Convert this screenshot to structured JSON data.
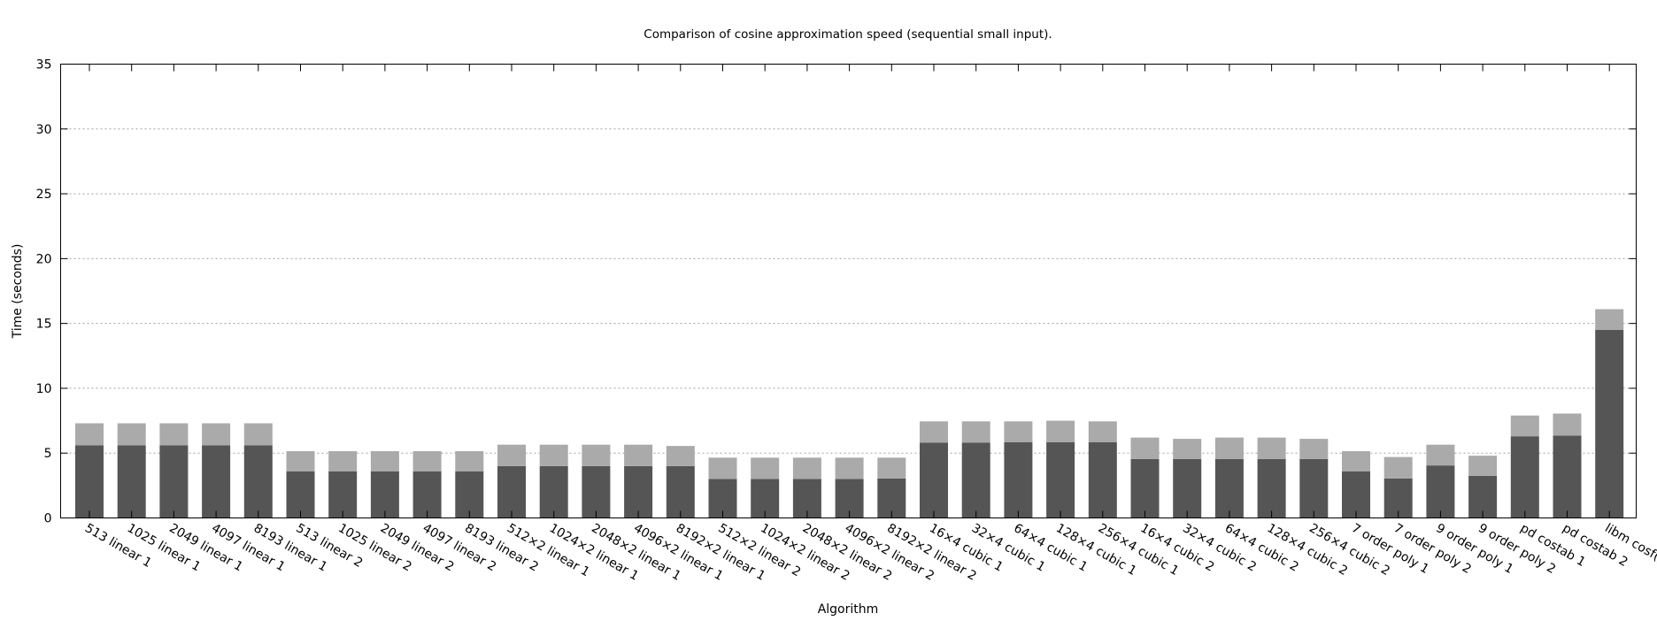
{
  "chart_data": {
    "type": "bar",
    "stacked": true,
    "title": "Comparison of cosine approximation speed (sequential small input).",
    "xlabel": "Algorithm",
    "ylabel": "Time (seconds)",
    "ylim": [
      0,
      35
    ],
    "yticks": [
      0,
      5,
      10,
      15,
      20,
      25,
      30,
      35
    ],
    "grid": true,
    "categories": [
      "513 linear 1",
      "1025 linear 1",
      "2049 linear 1",
      "4097 linear 1",
      "8193 linear 1",
      "513 linear 2",
      "1025 linear 2",
      "2049 linear 2",
      "4097 linear 2",
      "8193 linear 2",
      "512×2 linear 1",
      "1024×2 linear 1",
      "2048×2 linear 1",
      "4096×2 linear 1",
      "8192×2 linear 1",
      "512×2 linear 2",
      "1024×2 linear 2",
      "2048×2 linear 2",
      "4096×2 linear 2",
      "8192×2 linear 2",
      "16×4 cubic 1",
      "32×4 cubic 1",
      "64×4 cubic 1",
      "128×4 cubic 1",
      "256×4 cubic 1",
      "16×4 cubic 2",
      "32×4 cubic 2",
      "64×4 cubic 2",
      "128×4 cubic 2",
      "256×4 cubic 2",
      "7 order poly 1",
      "7 order poly 2",
      "9 order poly 1",
      "9 order poly 2",
      "pd costab 1",
      "pd costab 2",
      "libm cosf()"
    ],
    "series": [
      {
        "color": "#555555",
        "values": [
          5.6,
          5.6,
          5.6,
          5.6,
          5.6,
          3.6,
          3.6,
          3.6,
          3.6,
          3.6,
          4.0,
          4.0,
          4.0,
          4.0,
          4.0,
          3.0,
          3.0,
          3.0,
          3.0,
          3.05,
          5.8,
          5.8,
          5.85,
          5.85,
          5.85,
          4.55,
          4.55,
          4.55,
          4.55,
          4.55,
          3.6,
          3.05,
          4.05,
          3.25,
          6.3,
          6.35,
          14.5
        ]
      },
      {
        "color": "#aaaaaa",
        "values": [
          1.7,
          1.7,
          1.7,
          1.7,
          1.7,
          1.55,
          1.55,
          1.55,
          1.55,
          1.55,
          1.65,
          1.65,
          1.65,
          1.65,
          1.55,
          1.65,
          1.65,
          1.65,
          1.65,
          1.6,
          1.65,
          1.65,
          1.6,
          1.65,
          1.6,
          1.65,
          1.55,
          1.65,
          1.65,
          1.55,
          1.55,
          1.65,
          1.6,
          1.55,
          1.6,
          1.7,
          1.6
        ]
      }
    ]
  }
}
